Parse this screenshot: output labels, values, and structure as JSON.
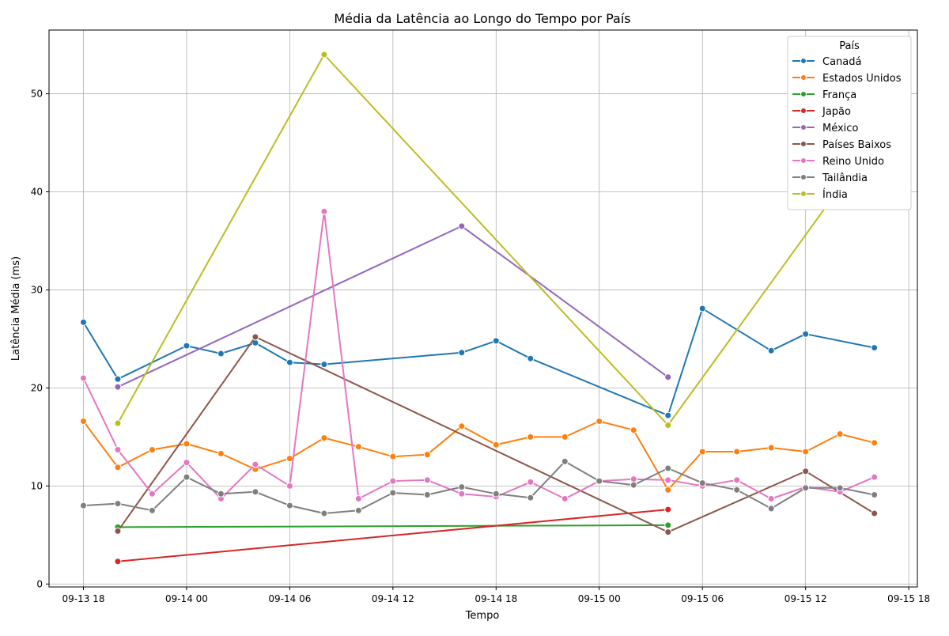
{
  "chart_data": {
    "type": "line",
    "title": "Média da Latência ao Longo do Tempo por País",
    "xlabel": "Tempo",
    "ylabel": "Latência Média (ms)",
    "xlim": [
      "2023-09-13T16:00",
      "2023-09-15T18:30"
    ],
    "ylim": [
      -0.3,
      56.5
    ],
    "x_ticks": [
      {
        "x": "2023-09-13T18:00",
        "label": "09-13 18"
      },
      {
        "x": "2023-09-14T00:00",
        "label": "09-14 00"
      },
      {
        "x": "2023-09-14T06:00",
        "label": "09-14 06"
      },
      {
        "x": "2023-09-14T12:00",
        "label": "09-14 12"
      },
      {
        "x": "2023-09-14T18:00",
        "label": "09-14 18"
      },
      {
        "x": "2023-09-15T00:00",
        "label": "09-15 00"
      },
      {
        "x": "2023-09-15T06:00",
        "label": "09-15 06"
      },
      {
        "x": "2023-09-15T12:00",
        "label": "09-15 12"
      },
      {
        "x": "2023-09-15T18:00",
        "label": "09-15 18"
      }
    ],
    "y_ticks": [
      {
        "y": 0,
        "label": "0"
      },
      {
        "y": 10,
        "label": "10"
      },
      {
        "y": 20,
        "label": "20"
      },
      {
        "y": 30,
        "label": "30"
      },
      {
        "y": 40,
        "label": "40"
      },
      {
        "y": 50,
        "label": "50"
      }
    ],
    "grid": true,
    "legend": {
      "title": "País",
      "position": "top-right"
    },
    "series": [
      {
        "name": "Canadá",
        "color": "#1f77b4",
        "points": [
          [
            "2023-09-13T18:00",
            26.7
          ],
          [
            "2023-09-13T20:00",
            20.9
          ],
          [
            "2023-09-14T00:00",
            24.3
          ],
          [
            "2023-09-14T02:00",
            23.5
          ],
          [
            "2023-09-14T04:00",
            24.6
          ],
          [
            "2023-09-14T06:00",
            22.6
          ],
          [
            "2023-09-14T08:00",
            22.4
          ],
          [
            "2023-09-14T16:00",
            23.6
          ],
          [
            "2023-09-14T18:00",
            24.8
          ],
          [
            "2023-09-14T20:00",
            23.0
          ],
          [
            "2023-09-15T04:00",
            17.2
          ],
          [
            "2023-09-15T06:00",
            28.1
          ],
          [
            "2023-09-15T10:00",
            23.8
          ],
          [
            "2023-09-15T12:00",
            25.5
          ],
          [
            "2023-09-15T16:00",
            24.1
          ]
        ]
      },
      {
        "name": "Estados Unidos",
        "color": "#ff7f0e",
        "points": [
          [
            "2023-09-13T18:00",
            16.6
          ],
          [
            "2023-09-13T20:00",
            11.9
          ],
          [
            "2023-09-13T22:00",
            13.7
          ],
          [
            "2023-09-14T00:00",
            14.3
          ],
          [
            "2023-09-14T02:00",
            13.3
          ],
          [
            "2023-09-14T04:00",
            11.7
          ],
          [
            "2023-09-14T06:00",
            12.8
          ],
          [
            "2023-09-14T08:00",
            14.9
          ],
          [
            "2023-09-14T10:00",
            14.0
          ],
          [
            "2023-09-14T12:00",
            13.0
          ],
          [
            "2023-09-14T14:00",
            13.2
          ],
          [
            "2023-09-14T16:00",
            16.1
          ],
          [
            "2023-09-14T18:00",
            14.2
          ],
          [
            "2023-09-14T20:00",
            15.0
          ],
          [
            "2023-09-14T22:00",
            15.0
          ],
          [
            "2023-09-15T00:00",
            16.6
          ],
          [
            "2023-09-15T02:00",
            15.7
          ],
          [
            "2023-09-15T04:00",
            9.6
          ],
          [
            "2023-09-15T06:00",
            13.5
          ],
          [
            "2023-09-15T08:00",
            13.5
          ],
          [
            "2023-09-15T10:00",
            13.9
          ],
          [
            "2023-09-15T12:00",
            13.5
          ],
          [
            "2023-09-15T14:00",
            15.3
          ],
          [
            "2023-09-15T16:00",
            14.4
          ]
        ]
      },
      {
        "name": "França",
        "color": "#2ca02c",
        "points": [
          [
            "2023-09-13T20:00",
            5.8
          ],
          [
            "2023-09-15T04:00",
            6.0
          ]
        ]
      },
      {
        "name": "Japão",
        "color": "#d62728",
        "points": [
          [
            "2023-09-13T20:00",
            2.3
          ],
          [
            "2023-09-15T04:00",
            7.6
          ]
        ]
      },
      {
        "name": "México",
        "color": "#9467bd",
        "points": [
          [
            "2023-09-13T20:00",
            20.1
          ],
          [
            "2023-09-14T16:00",
            36.5
          ],
          [
            "2023-09-15T04:00",
            21.1
          ]
        ]
      },
      {
        "name": "Países Baixos",
        "color": "#8c564b",
        "points": [
          [
            "2023-09-13T20:00",
            5.4
          ],
          [
            "2023-09-14T04:00",
            25.2
          ],
          [
            "2023-09-15T04:00",
            5.3
          ],
          [
            "2023-09-15T12:00",
            11.5
          ],
          [
            "2023-09-15T16:00",
            7.2
          ]
        ]
      },
      {
        "name": "Reino Unido",
        "color": "#e377c2",
        "points": [
          [
            "2023-09-13T18:00",
            21.0
          ],
          [
            "2023-09-13T20:00",
            13.7
          ],
          [
            "2023-09-13T22:00",
            9.2
          ],
          [
            "2023-09-14T00:00",
            12.4
          ],
          [
            "2023-09-14T02:00",
            8.7
          ],
          [
            "2023-09-14T04:00",
            12.2
          ],
          [
            "2023-09-14T06:00",
            10.0
          ],
          [
            "2023-09-14T08:00",
            38.0
          ],
          [
            "2023-09-14T10:00",
            8.7
          ],
          [
            "2023-09-14T12:00",
            10.5
          ],
          [
            "2023-09-14T14:00",
            10.6
          ],
          [
            "2023-09-14T16:00",
            9.2
          ],
          [
            "2023-09-14T18:00",
            8.9
          ],
          [
            "2023-09-14T20:00",
            10.4
          ],
          [
            "2023-09-14T22:00",
            8.7
          ],
          [
            "2023-09-15T00:00",
            10.5
          ],
          [
            "2023-09-15T02:00",
            10.7
          ],
          [
            "2023-09-15T04:00",
            10.6
          ],
          [
            "2023-09-15T06:00",
            10.0
          ],
          [
            "2023-09-15T08:00",
            10.6
          ],
          [
            "2023-09-15T10:00",
            8.7
          ],
          [
            "2023-09-15T12:00",
            9.9
          ],
          [
            "2023-09-15T14:00",
            9.4
          ],
          [
            "2023-09-15T16:00",
            10.9
          ]
        ]
      },
      {
        "name": "Tailândia",
        "color": "#7f7f7f",
        "points": [
          [
            "2023-09-13T18:00",
            8.0
          ],
          [
            "2023-09-13T20:00",
            8.2
          ],
          [
            "2023-09-13T22:00",
            7.5
          ],
          [
            "2023-09-14T00:00",
            10.9
          ],
          [
            "2023-09-14T02:00",
            9.2
          ],
          [
            "2023-09-14T04:00",
            9.4
          ],
          [
            "2023-09-14T06:00",
            8.0
          ],
          [
            "2023-09-14T08:00",
            7.2
          ],
          [
            "2023-09-14T10:00",
            7.5
          ],
          [
            "2023-09-14T12:00",
            9.3
          ],
          [
            "2023-09-14T14:00",
            9.1
          ],
          [
            "2023-09-14T16:00",
            9.9
          ],
          [
            "2023-09-14T18:00",
            9.2
          ],
          [
            "2023-09-14T20:00",
            8.8
          ],
          [
            "2023-09-14T22:00",
            12.5
          ],
          [
            "2023-09-15T00:00",
            10.5
          ],
          [
            "2023-09-15T02:00",
            10.1
          ],
          [
            "2023-09-15T04:00",
            11.8
          ],
          [
            "2023-09-15T06:00",
            10.3
          ],
          [
            "2023-09-15T08:00",
            9.6
          ],
          [
            "2023-09-15T10:00",
            7.7
          ],
          [
            "2023-09-15T12:00",
            9.8
          ],
          [
            "2023-09-15T14:00",
            9.8
          ],
          [
            "2023-09-15T16:00",
            9.1
          ]
        ]
      },
      {
        "name": "Índia",
        "color": "#bcbd22",
        "points": [
          [
            "2023-09-13T20:00",
            16.4
          ],
          [
            "2023-09-14T08:00",
            54.0
          ],
          [
            "2023-09-15T04:00",
            16.2
          ],
          [
            "2023-09-15T16:00",
            45.3
          ]
        ]
      }
    ]
  }
}
